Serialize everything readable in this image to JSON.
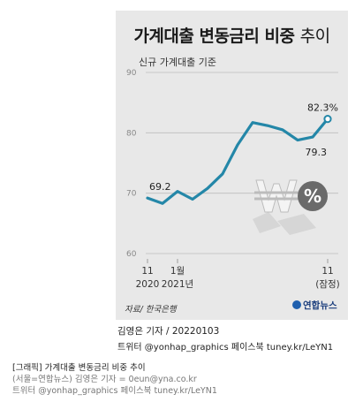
{
  "chart_data": {
    "type": "line",
    "title_main": "가계대출 변동금리 비중",
    "title_suffix": "추이",
    "subtitle": "신규 가계대출 기준",
    "ylim": [
      60,
      90
    ],
    "y_ticks": [
      "90",
      "80",
      "70",
      "60"
    ],
    "y_tick_values": [
      90,
      80,
      70,
      60
    ],
    "x_tick_labels": [
      {
        "index": 0,
        "top": "11",
        "bottom": "2020"
      },
      {
        "index": 2,
        "top": "1월",
        "bottom": "2021년"
      },
      {
        "index": 12,
        "top": "11",
        "bottom": "(잠정)"
      }
    ],
    "x": [
      "2020-11",
      "2020-12",
      "2021-01",
      "2021-02",
      "2021-03",
      "2021-04",
      "2021-05",
      "2021-06",
      "2021-07",
      "2021-08",
      "2021-09",
      "2021-10",
      "2021-11"
    ],
    "values": [
      69.2,
      68.3,
      70.3,
      69.0,
      70.8,
      73.2,
      78.0,
      81.7,
      81.2,
      80.5,
      78.8,
      79.3,
      82.3
    ],
    "data_labels": [
      {
        "index": 0,
        "text": "69.2"
      },
      {
        "index": 11,
        "text": "79.3"
      },
      {
        "index": 12,
        "text": "82.3%"
      }
    ],
    "line_color": "#2487a8",
    "grid": true
  },
  "source_label": "자료/ 한국은행",
  "logo_text": "연합뉴스",
  "reporter": "김영은 기자 / 20220103",
  "social": "트위터 @yonhap_graphics  페이스북 tuney.kr/LeYN1",
  "caption": {
    "line1": "[그래픽] 가계대출 변동금리 비중 추이",
    "line2": "(서울=연합뉴스) 김영은 기자 = 0eun@yna.co.kr",
    "line3": "트위터 @yonhap_graphics 페이스북 tuney.kr/LeYN1"
  },
  "decor_text": "%"
}
